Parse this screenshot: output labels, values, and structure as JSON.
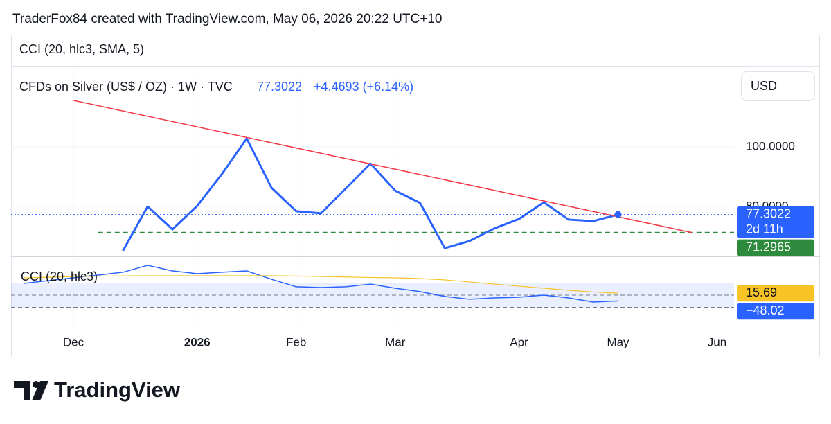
{
  "header": "TraderFox84 created with TradingView.com, May 06, 2026 20:22 UTC+10",
  "brand": "TradingView",
  "chart_data": {
    "type": "line",
    "indicator_title": "CCI (20, hlc3, SMA, 5)",
    "title": "CFDs on Silver (US$ / OZ) · 1W · TVC",
    "change": "+4.4693 (+6.14%)",
    "currency": "USD",
    "countdown": "2d 11h",
    "categories": [
      null,
      null,
      "Dec",
      null,
      null,
      null,
      null,
      "2026",
      null,
      null,
      null,
      "Feb",
      null,
      null,
      null,
      "Mar",
      null,
      null,
      null,
      null,
      "Apr",
      null,
      null,
      null,
      "May",
      null,
      null,
      null,
      "Jun"
    ],
    "ylim": [
      63.26,
      127.21
    ],
    "yticks": [
      {
        "value": 100,
        "label": "100.0000"
      },
      {
        "value": 80,
        "label": "80.0000"
      }
    ],
    "grid": true,
    "series": [
      {
        "color": "#2962ff",
        "values": [
          null,
          null,
          null,
          null,
          65.1,
          80.0,
          72.3,
          80.2,
          90.9,
          102.8,
          86.3,
          78.4,
          77.7,
          86.0,
          94.4,
          85.3,
          81.2,
          66.0,
          68.4,
          72.6,
          75.8,
          81.4,
          75.6,
          75.1,
          77.3022,
          null,
          null,
          null,
          null
        ]
      }
    ],
    "level": {
      "value": 71.2965,
      "color": "#2e8b3e"
    },
    "trendline": {
      "color": "#f23645",
      "x": [
        2,
        27
      ],
      "values": [
        115.6,
        71.2
      ]
    },
    "cci": {
      "name": "CCI (20, hlc3)",
      "ylim": [
        -263,
        320
      ],
      "band_levels": [
        100,
        0,
        -100
      ],
      "series": [
        {
          "color": "#2962ff",
          "values": [
            97,
            120,
            143,
            166,
            189,
            246,
            200,
            177,
            189,
            200,
            131,
            69,
            63,
            69,
            91,
            57,
            29,
            -11,
            -34,
            -23,
            -17,
            0,
            -23,
            -57,
            -48.02,
            null,
            null,
            null,
            null
          ],
          "value_labels": [
            null,
            null,
            null,
            null,
            null,
            null,
            null,
            null,
            null,
            null,
            null,
            null,
            null,
            null,
            null,
            null,
            null,
            null,
            null,
            null,
            null,
            null,
            null,
            null,
            "−48.02",
            null,
            null,
            null,
            null
          ]
        },
        {
          "color": "#f7c325",
          "values": [
            143,
            148,
            154,
            157,
            159,
            160,
            160,
            160,
            160,
            160,
            160,
            158,
            154,
            150,
            146,
            143,
            137,
            126,
            109,
            91,
            74,
            57,
            40,
            26,
            15.69,
            null,
            null,
            null,
            null
          ]
        }
      ]
    }
  }
}
